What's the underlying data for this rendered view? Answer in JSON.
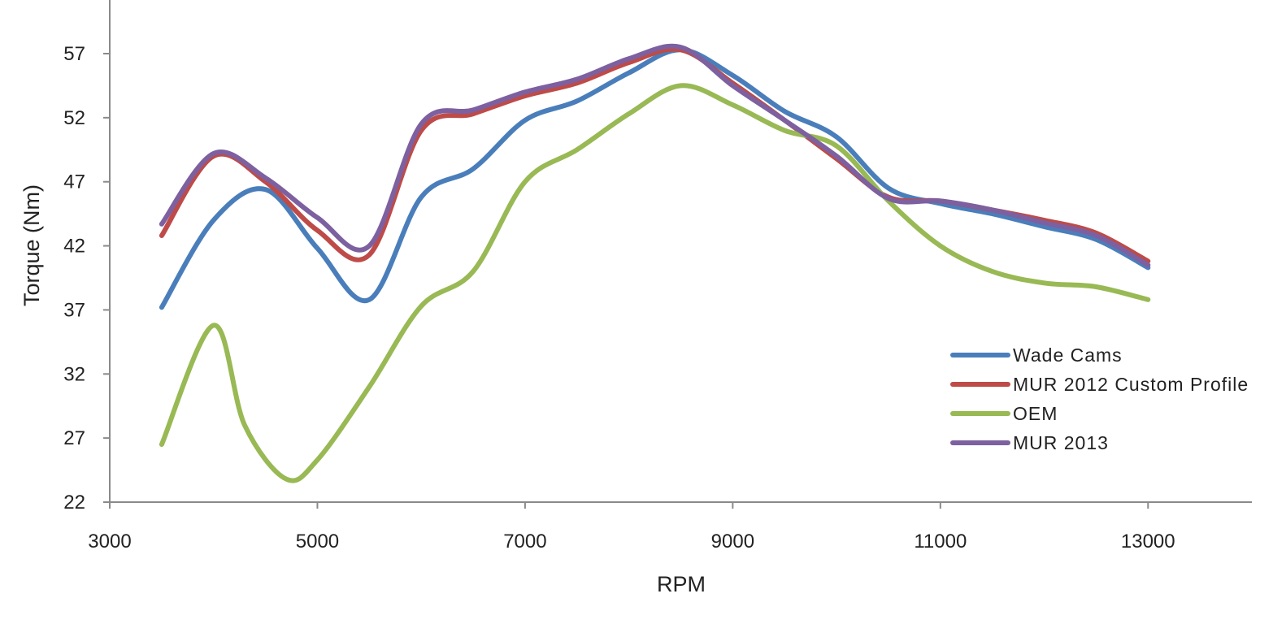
{
  "chart_data": {
    "type": "line",
    "title": "",
    "xlabel": "RPM",
    "ylabel": "Torque (Nm)",
    "xlim": [
      3000,
      14000
    ],
    "ylim": [
      22,
      62
    ],
    "xticks": [
      3000,
      5000,
      7000,
      9000,
      11000,
      13000
    ],
    "yticks": [
      22,
      27,
      32,
      37,
      42,
      47,
      52,
      57
    ],
    "grid": false,
    "legend_position": "bottom-right",
    "series": [
      {
        "name": "Wade Cams",
        "color": "#4a7ebb",
        "x": [
          3500,
          4000,
          4500,
          5000,
          5500,
          6000,
          6500,
          7000,
          7500,
          8000,
          8500,
          9000,
          9500,
          10000,
          10500,
          11000,
          11500,
          12000,
          12500,
          13000
        ],
        "y": [
          37.2,
          44,
          46.4,
          41.8,
          37.8,
          45.8,
          48,
          51.8,
          53.3,
          55.5,
          57.3,
          55.3,
          52.5,
          50.5,
          46.5,
          45.3,
          44.5,
          43.5,
          42.5,
          40.3
        ]
      },
      {
        "name": "MUR 2012 Custom Profile",
        "color": "#be4b48",
        "x": [
          3500,
          4000,
          4500,
          5000,
          5500,
          6000,
          6500,
          7000,
          7500,
          8000,
          8500,
          9000,
          9500,
          10000,
          10500,
          11000,
          11500,
          12000,
          12500,
          13000
        ],
        "y": [
          42.8,
          49,
          47,
          43.2,
          41.3,
          51,
          52.3,
          53.7,
          54.7,
          56.3,
          57.3,
          54.7,
          51.8,
          48.8,
          45.8,
          45.5,
          44.8,
          44,
          43,
          40.8
        ]
      },
      {
        "name": "OEM",
        "color": "#98b954",
        "x": [
          3500,
          4000,
          4300,
          4700,
          5000,
          5500,
          6000,
          6500,
          7000,
          7500,
          8000,
          8500,
          9000,
          9500,
          10000,
          10500,
          11000,
          11500,
          12000,
          12500,
          13000
        ],
        "y": [
          26.5,
          35.8,
          28,
          23.8,
          25.3,
          31,
          37.3,
          40,
          47,
          49.5,
          52.3,
          54.5,
          53,
          51,
          49.8,
          45.5,
          42,
          40,
          39.1,
          38.8,
          37.8
        ]
      },
      {
        "name": "MUR 2013",
        "color": "#7d60a0",
        "x": [
          3500,
          4000,
          4500,
          5000,
          5500,
          6000,
          6500,
          7000,
          7500,
          8000,
          8500,
          9000,
          9500,
          10000,
          10500,
          11000,
          11500,
          12000,
          12500,
          13000
        ],
        "y": [
          43.7,
          49.2,
          47.3,
          44.2,
          42,
          51.5,
          52.6,
          54,
          55,
          56.6,
          57.5,
          54.5,
          51.8,
          49,
          45.7,
          45.5,
          44.8,
          43.8,
          42.8,
          40.5
        ]
      }
    ]
  }
}
